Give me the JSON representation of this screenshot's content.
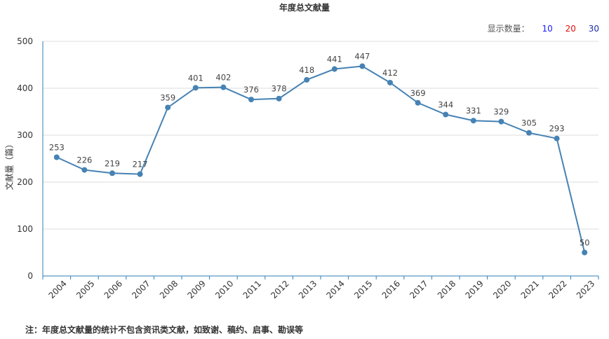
{
  "chart_data": {
    "type": "line",
    "title": "年度总文献量",
    "xlabel": "",
    "ylabel": "文献量（篇）",
    "categories": [
      "2004",
      "2005",
      "2006",
      "2007",
      "2008",
      "2009",
      "2010",
      "2011",
      "2012",
      "2013",
      "2014",
      "2015",
      "2016",
      "2017",
      "2018",
      "2019",
      "2020",
      "2021",
      "2022",
      "2023"
    ],
    "series": [
      {
        "values": [
          253,
          226,
          219,
          217,
          359,
          401,
          402,
          376,
          378,
          418,
          441,
          447,
          412,
          369,
          344,
          331,
          329,
          305,
          293,
          50
        ]
      }
    ],
    "ylim": [
      0,
      500
    ],
    "yticks": [
      "0",
      "100",
      "200",
      "300",
      "400",
      "500"
    ],
    "grid": true,
    "line_color": "#4682b4"
  },
  "count_selector": {
    "label": "显示数量：",
    "options": [
      "10",
      "20",
      "30"
    ]
  },
  "footnote": "注：年度总文献量的统计不包含资讯类文献，如致谢、稿约、启事、勘误等"
}
